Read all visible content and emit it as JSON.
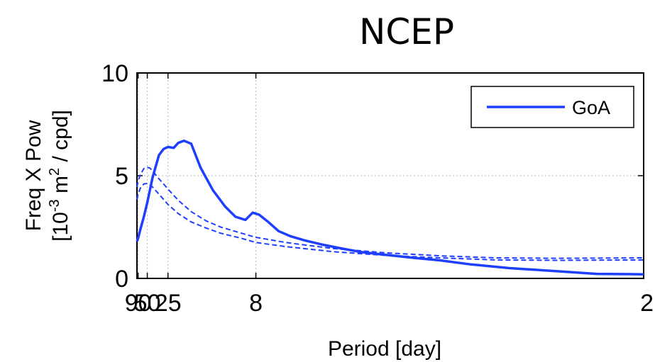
{
  "chart_data": {
    "type": "line",
    "title": "NCEP",
    "xlabel": "Period [day]",
    "ylabel_line1": "Freq X Pow",
    "ylabel_line2": "[10",
    "ylabel_sup1": "-3",
    "ylabel_mid": " m",
    "ylabel_sup2": "2",
    "ylabel_end": " / cpd]",
    "x_scale": "reciprocal",
    "xlim": [
      100,
      2
    ],
    "ylim": [
      0,
      10
    ],
    "x_ticks": [
      90,
      50,
      25,
      8,
      2
    ],
    "x_ticklabels": [
      "90",
      "50",
      "25",
      "8",
      "2"
    ],
    "y_ticks": [
      0,
      5,
      10
    ],
    "y_ticklabels": [
      "0",
      "5",
      "10"
    ],
    "grid": true,
    "legend_position": "top-right",
    "series": [
      {
        "name": "GoA",
        "style": "solid",
        "color": "#1f3fff",
        "x": [
          100,
          90,
          75,
          60,
          50,
          40,
          32,
          28,
          25,
          22,
          20,
          18,
          16,
          14,
          12,
          10.5,
          9.5,
          8.7,
          8.2,
          7.8,
          7.3,
          6.8,
          6.3,
          5.8,
          5.3,
          4.8,
          4.4,
          4.0,
          3.6,
          3.3,
          3.0,
          2.7,
          2.4,
          2.2,
          2.0
        ],
        "y": [
          1.8,
          1.95,
          2.4,
          3.0,
          3.7,
          4.9,
          6.0,
          6.3,
          6.4,
          6.35,
          6.6,
          6.7,
          6.55,
          5.4,
          4.3,
          3.5,
          3.0,
          2.85,
          3.2,
          3.1,
          2.75,
          2.3,
          2.05,
          1.85,
          1.65,
          1.45,
          1.28,
          1.15,
          1.0,
          0.88,
          0.68,
          0.5,
          0.35,
          0.22,
          0.2
        ]
      },
      {
        "name": "",
        "style": "dashed",
        "color": "#1f3fff",
        "x": [
          100,
          90,
          75,
          60,
          50,
          45,
          40,
          33,
          28,
          25,
          20,
          16,
          13,
          11,
          9,
          8,
          6.5,
          5,
          4,
          3.3,
          2.8,
          2.4,
          2.0
        ],
        "y": [
          4.45,
          4.75,
          5.05,
          5.35,
          5.4,
          5.38,
          5.25,
          4.9,
          4.6,
          4.35,
          3.8,
          3.25,
          2.8,
          2.5,
          2.2,
          2.0,
          1.75,
          1.45,
          1.25,
          1.1,
          1.0,
          0.98,
          1.0
        ]
      },
      {
        "name": "",
        "style": "dashed",
        "color": "#1f3fff",
        "x": [
          100,
          90,
          75,
          60,
          50,
          45,
          40,
          33,
          28,
          25,
          20,
          16,
          13,
          11,
          9,
          8,
          6.5,
          5,
          4,
          3.3,
          2.8,
          2.4,
          2.0
        ],
        "y": [
          3.85,
          4.1,
          4.4,
          4.6,
          4.62,
          4.58,
          4.45,
          4.15,
          3.85,
          3.6,
          3.15,
          2.75,
          2.45,
          2.2,
          1.95,
          1.75,
          1.55,
          1.3,
          1.12,
          1.0,
          0.9,
          0.88,
          0.9
        ]
      }
    ]
  }
}
